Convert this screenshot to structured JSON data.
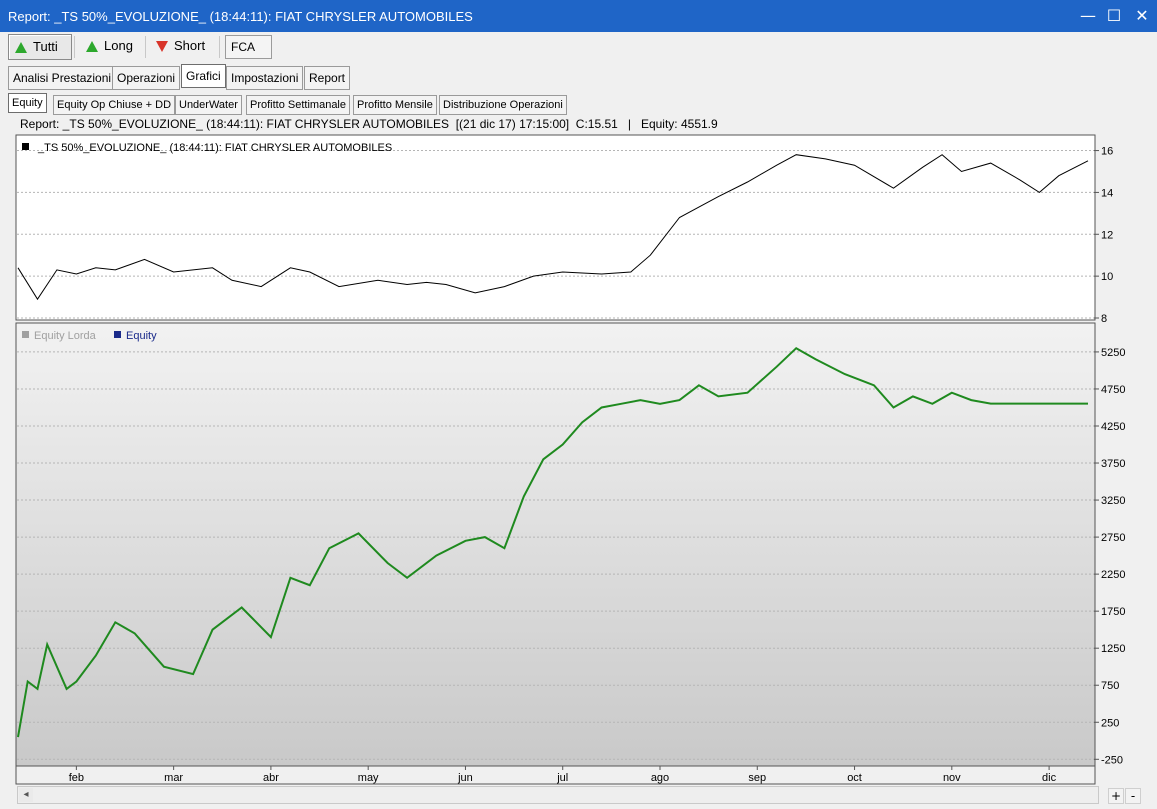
{
  "window": {
    "title": "Report: _TS 50%_EVOLUZIONE_ (18:44:11): FIAT CHRYSLER AUTOMOBILES",
    "minimize_label": "—",
    "maximize_label": "☐",
    "close_label": "✕"
  },
  "toolbar": {
    "all_label": "Tutti",
    "long_label": "Long",
    "short_label": "Short",
    "symbol": "FCA"
  },
  "main_tabs": [
    {
      "label": "Analisi Prestazioni"
    },
    {
      "label": "Operazioni"
    },
    {
      "label": "Grafici"
    },
    {
      "label": "Impostazioni"
    },
    {
      "label": "Report"
    }
  ],
  "sub_tabs": [
    {
      "label": "Equity"
    },
    {
      "label": "Equity Op Chiuse + DD"
    },
    {
      "label": "UnderWater"
    },
    {
      "label": "Profitto Settimanale"
    },
    {
      "label": "Profitto Mensile"
    },
    {
      "label": "Distribuzione Operazioni"
    }
  ],
  "info_line": "Report: _TS 50%_EVOLUZIONE_ (18:44:11): FIAT CHRYSLER AUTOMOBILES  [(21 dic 17) 17:15:00]  C:15.51   |   Equity: 4551.9",
  "scroll": {
    "left_label": "◂",
    "zoom_in_label": "+",
    "zoom_out_label": "-"
  },
  "chart_data": [
    {
      "type": "line",
      "legend": "_TS 50%_EVOLUZIONE_ (18:44:11): FIAT CHRYSLER AUTOMOBILES",
      "colors": {
        "line": "#000000",
        "legend_marker": "#000000"
      },
      "ylim": [
        8,
        16.6
      ],
      "y_ticks": [
        8,
        10,
        12,
        14,
        16
      ],
      "x_ticks": [
        "feb",
        "mar",
        "abr",
        "may",
        "jun",
        "jul",
        "ago",
        "sep",
        "oct",
        "nov",
        "dic"
      ],
      "series": [
        {
          "x": [
            0,
            0.2,
            0.4,
            0.6,
            0.8,
            1,
            1.3,
            1.6,
            2,
            2.2,
            2.5,
            2.8,
            3,
            3.3,
            3.7,
            4,
            4.2,
            4.4,
            4.7,
            5,
            5.3,
            5.6,
            6,
            6.3,
            6.5,
            6.8,
            7,
            7.2,
            7.5,
            7.8,
            8,
            8.3,
            8.6,
            9,
            9.3,
            9.5,
            9.7,
            10,
            10.3,
            10.5,
            10.7,
            11
          ],
          "values": [
            10.4,
            8.9,
            10.3,
            10.1,
            10.4,
            10.3,
            10.8,
            10.2,
            10.4,
            9.8,
            9.5,
            10.4,
            10.2,
            9.5,
            9.8,
            9.6,
            9.7,
            9.6,
            9.2,
            9.5,
            10,
            10.2,
            10.1,
            10.2,
            11,
            12.8,
            13.3,
            13.8,
            14.5,
            15.3,
            15.8,
            15.6,
            15.3,
            14.2,
            15.2,
            15.8,
            15,
            15.4,
            14.6,
            14,
            14.8,
            15.51
          ]
        }
      ]
    },
    {
      "type": "line",
      "legend_entries": [
        {
          "name": "Equity Lorda",
          "color": "#a0a0a0"
        },
        {
          "name": "Equity",
          "color": "#1a2a8a"
        }
      ],
      "colors": {
        "line": "#1f8a1f"
      },
      "ylim": [
        -300,
        5600
      ],
      "y_ticks": [
        -250,
        250,
        750,
        1250,
        1750,
        2250,
        2750,
        3250,
        3750,
        4250,
        4750,
        5250
      ],
      "x_ticks": [
        "feb",
        "mar",
        "abr",
        "may",
        "jun",
        "jul",
        "ago",
        "sep",
        "oct",
        "nov",
        "dic"
      ],
      "series": [
        {
          "name": "Equity",
          "x": [
            0,
            0.1,
            0.2,
            0.3,
            0.5,
            0.6,
            0.8,
            1,
            1.2,
            1.5,
            1.8,
            2,
            2.3,
            2.6,
            2.8,
            3,
            3.2,
            3.5,
            3.8,
            4,
            4.3,
            4.6,
            4.8,
            5,
            5.2,
            5.4,
            5.6,
            5.8,
            6,
            6.2,
            6.4,
            6.6,
            6.8,
            7,
            7.2,
            7.5,
            7.8,
            8,
            8.2,
            8.5,
            8.8,
            9,
            9.2,
            9.4,
            9.6,
            9.8,
            10,
            10.2,
            10.4,
            10.6,
            10.8,
            11
          ],
          "values": [
            50,
            800,
            700,
            1300,
            700,
            800,
            1150,
            1600,
            1450,
            1000,
            900,
            1500,
            1800,
            1400,
            2200,
            2100,
            2600,
            2800,
            2400,
            2200,
            2500,
            2700,
            2750,
            2600,
            3300,
            3800,
            4000,
            4300,
            4500,
            4550,
            4600,
            4550,
            4600,
            4800,
            4650,
            4700,
            5050,
            5300,
            5150,
            4950,
            4800,
            4500,
            4650,
            4550,
            4700,
            4600,
            4551.9,
            4551.9,
            4551.9,
            4551.9,
            4551.9,
            4551.9
          ]
        }
      ]
    }
  ]
}
